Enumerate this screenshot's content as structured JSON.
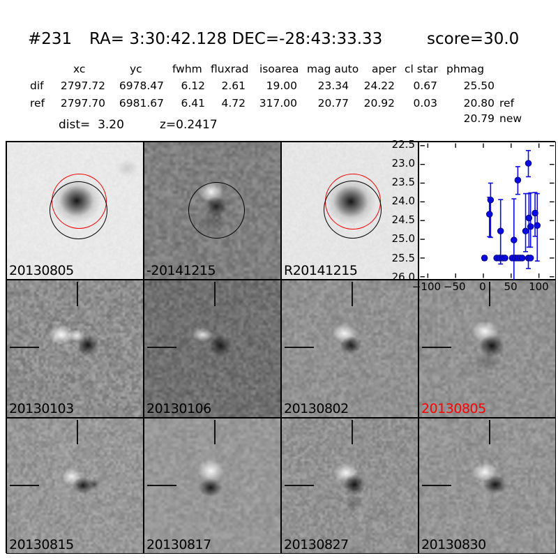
{
  "header": {
    "id": "#231",
    "coords": "RA= 3:30:42.128 DEC=-28:43:33.33",
    "score": "score=30.0"
  },
  "photometry": {
    "columns": [
      "xc",
      "yc",
      "fwhm",
      "fluxrad",
      "isoarea",
      "mag auto",
      "aper",
      "cl star",
      "phmag"
    ],
    "rows": [
      {
        "label": "dif",
        "values": [
          "2797.72",
          "6978.47",
          "6.12",
          "2.61",
          "19.00",
          "23.34",
          "24.22",
          "0.67",
          "25.50"
        ],
        "suffix": ""
      },
      {
        "label": "ref",
        "values": [
          "2797.70",
          "6981.67",
          "6.41",
          "4.72",
          "317.00",
          "20.77",
          "20.92",
          "0.03",
          "20.80"
        ],
        "suffix": "ref"
      }
    ],
    "new_row": {
      "value": "20.79",
      "suffix": "new"
    },
    "dist_label": "dist=  3.20",
    "z_label": "z=0.2417"
  },
  "cutouts": [
    {
      "label": "20130805",
      "label_color": "#000000",
      "noise": {
        "bg": 233,
        "amp": 7,
        "res": 80,
        "seed": 11
      }
    },
    {
      "label": "-20141215",
      "label_color": "#000000",
      "noise": {
        "bg": 128,
        "amp": 26,
        "res": 48,
        "seed": 22
      }
    },
    {
      "label": "R20141215",
      "label_color": "#000000",
      "noise": {
        "bg": 230,
        "amp": 7,
        "res": 80,
        "seed": 33
      }
    },
    {
      "label": "20130103",
      "label_color": "#000000",
      "noise": {
        "bg": 142,
        "amp": 34,
        "res": 60,
        "seed": 44
      }
    },
    {
      "label": "20130106",
      "label_color": "#000000",
      "noise": {
        "bg": 112,
        "amp": 26,
        "res": 55,
        "seed": 55
      }
    },
    {
      "label": "20130802",
      "label_color": "#000000",
      "noise": {
        "bg": 146,
        "amp": 24,
        "res": 55,
        "seed": 66
      }
    },
    {
      "label": "20130805",
      "label_color": "#ff0000",
      "noise": {
        "bg": 146,
        "amp": 24,
        "res": 52,
        "seed": 77
      }
    },
    {
      "label": "20130815",
      "label_color": "#000000",
      "noise": {
        "bg": 152,
        "amp": 27,
        "res": 60,
        "seed": 88
      }
    },
    {
      "label": "20130817",
      "label_color": "#000000",
      "noise": {
        "bg": 152,
        "amp": 20,
        "res": 48,
        "seed": 99
      }
    },
    {
      "label": "20130827",
      "label_color": "#000000",
      "noise": {
        "bg": 146,
        "amp": 27,
        "res": 60,
        "seed": 111
      }
    },
    {
      "label": "20130830",
      "label_color": "#000000",
      "noise": {
        "bg": 149,
        "amp": 24,
        "res": 55,
        "seed": 122
      }
    }
  ],
  "chart_data": {
    "type": "scatter",
    "title": "",
    "xlabel": "",
    "ylabel": "",
    "legend": "none",
    "grid": false,
    "marker_color": "#0a0ae0",
    "xlim": [
      -115.5,
      129.3
    ],
    "ylim": [
      26.06,
      22.41
    ],
    "y_inverted": true,
    "xticks": [
      -100,
      -50,
      0,
      50,
      100
    ],
    "yticks": [
      22.5,
      23.0,
      23.5,
      24.0,
      24.5,
      25.0,
      25.5,
      26.0
    ],
    "points": [
      {
        "x": 2,
        "y": 25.5,
        "eu": 0.06,
        "ed": 0.06
      },
      {
        "x": 11,
        "y": 24.33,
        "eu": 0.45,
        "ed": 0.6
      },
      {
        "x": 13,
        "y": 23.95,
        "eu": 0.45,
        "ed": 1.0
      },
      {
        "x": 24,
        "y": 25.5,
        "eu": 0.05,
        "ed": 0.05
      },
      {
        "x": 29,
        "y": 25.5,
        "eu": 0.05,
        "ed": 0.05
      },
      {
        "x": 31,
        "y": 24.78,
        "eu": 0.84,
        "ed": 0.88
      },
      {
        "x": 35,
        "y": 25.5,
        "eu": 0.05,
        "ed": 0.05
      },
      {
        "x": 39,
        "y": 25.5,
        "eu": 0.05,
        "ed": 0.05
      },
      {
        "x": 52,
        "y": 25.5,
        "eu": 0.05,
        "ed": 0.05
      },
      {
        "x": 55,
        "y": 25.02,
        "eu": 1.1,
        "ed": 1.25
      },
      {
        "x": 58,
        "y": 25.5,
        "eu": 0.05,
        "ed": 0.05
      },
      {
        "x": 62,
        "y": 23.42,
        "eu": 0.36,
        "ed": 0.38
      },
      {
        "x": 62,
        "y": 25.5,
        "eu": 0.05,
        "ed": 0.05
      },
      {
        "x": 66,
        "y": 25.5,
        "eu": 0.05,
        "ed": 0.05
      },
      {
        "x": 70,
        "y": 25.5,
        "eu": 0.05,
        "ed": 0.05
      },
      {
        "x": 76,
        "y": 24.78,
        "eu": 1.0,
        "ed": 0.55
      },
      {
        "x": 81,
        "y": 22.97,
        "eu": 0.34,
        "ed": 0.36
      },
      {
        "x": 81,
        "y": 25.5,
        "eu": 0.05,
        "ed": 0.28
      },
      {
        "x": 82,
        "y": 24.43,
        "eu": 0.65,
        "ed": 0.78
      },
      {
        "x": 85,
        "y": 24.66,
        "eu": 0.9,
        "ed": 0.55
      },
      {
        "x": 85,
        "y": 25.5,
        "eu": 0.05,
        "ed": 0.05
      },
      {
        "x": 93,
        "y": 24.3,
        "eu": 0.55,
        "ed": 0.62
      },
      {
        "x": 97,
        "y": 24.63,
        "eu": 0.85,
        "ed": 0.95
      }
    ]
  }
}
